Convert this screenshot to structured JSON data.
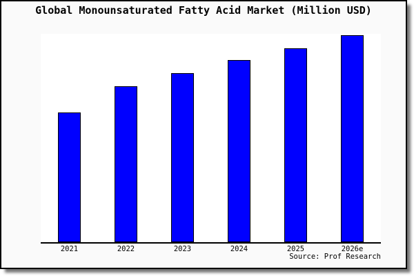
{
  "chart_data": {
    "type": "bar",
    "title": "Global Monounsaturated Fatty Acid Market (Million USD)",
    "categories": [
      "2021",
      "2022",
      "2023",
      "2024",
      "2025",
      "2026e"
    ],
    "values": [
      62.8,
      75.2,
      81.6,
      87.9,
      93.8,
      100
    ],
    "value_units": "relative bar height, % of 2026e bar (chart displays no numeric y-axis)",
    "xlabel": "",
    "ylabel": "",
    "ylim": [
      0,
      100
    ],
    "grid": false,
    "legend_position": "none",
    "bar_color": "#0000ff",
    "bar_border_color": "#000000",
    "source_note": "Source: Prof Research"
  },
  "colors": {
    "frame_background": "#fafafa",
    "plot_background": "#ffffff",
    "frame_border": "#000000",
    "axis_line": "#000000",
    "title_text": "#000000",
    "tick_text": "#000000"
  }
}
